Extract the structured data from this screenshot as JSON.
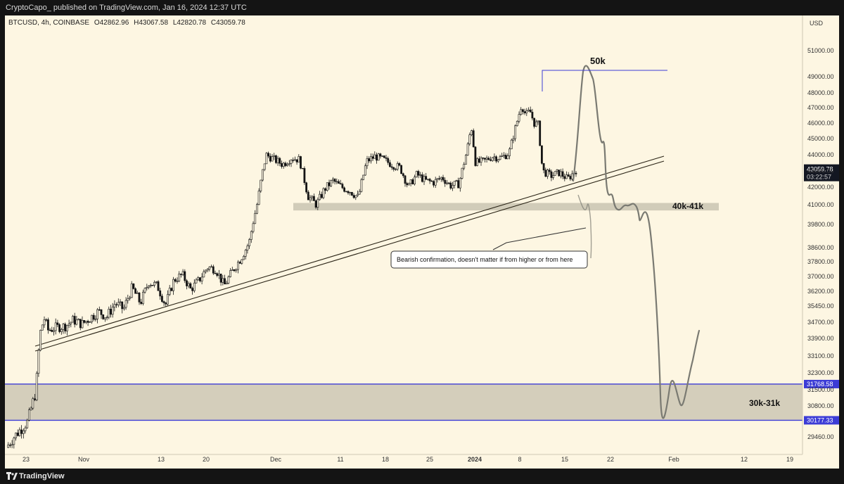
{
  "header": {
    "publisher_line": "CryptoCapo_ published on TradingView.com, Jan 16, 2024 12:37 UTC"
  },
  "footer": {
    "brand": "TradingView",
    "brand_icon": "tradingview-logo-icon"
  },
  "chart_data": {
    "type": "candlestick",
    "symbol_line": "BTCUSD, 4h, COINBASE",
    "ohlc": {
      "open": "O42862.96",
      "high": "H43067.58",
      "low": "L42820.78",
      "close": "C43059.78"
    },
    "currency": "USD",
    "price_ticks": [
      "51000.00",
      "49000.00",
      "48000.00",
      "47000.00",
      "46000.00",
      "45000.00",
      "44000.00",
      "43000.00",
      "42000.00",
      "41000.00",
      "39800.00",
      "38600.00",
      "37800.00",
      "37000.00",
      "36200.00",
      "35450.00",
      "34700.00",
      "33900.00",
      "33100.00",
      "32300.00",
      "31500.00",
      "30800.00",
      "29460.00"
    ],
    "price_ticks_num": [
      51000,
      49000,
      48000,
      47000,
      46000,
      45000,
      44000,
      43000,
      42000,
      41000,
      39800,
      38600,
      37800,
      37000,
      36200,
      35450,
      34700,
      33900,
      33100,
      32300,
      31500,
      30800,
      29460
    ],
    "time_ticks": [
      "23",
      "Nov",
      "13",
      "20",
      "Dec",
      "11",
      "18",
      "25",
      "2024",
      "8",
      "15",
      "22",
      "Feb",
      "12",
      "19"
    ],
    "current_price": {
      "label": "43059.78",
      "countdown": "03:22:57",
      "color": "#131722"
    },
    "markers": [
      {
        "label": "31768.58",
        "value": 31768.58,
        "color": "#3c3cd6"
      },
      {
        "label": "30177.33",
        "value": 30177.33,
        "color": "#3c3cd6"
      }
    ],
    "price_path": [
      [
        0,
        29000
      ],
      [
        2,
        29500
      ],
      [
        5,
        30100
      ],
      [
        7,
        31400
      ],
      [
        8,
        34100
      ],
      [
        9,
        34900
      ],
      [
        10,
        34300
      ],
      [
        12,
        34450
      ],
      [
        14,
        34500
      ],
      [
        16,
        34800
      ],
      [
        18,
        34600
      ],
      [
        20,
        34900
      ],
      [
        22,
        35200
      ],
      [
        24,
        34950
      ],
      [
        26,
        35600
      ],
      [
        28,
        35300
      ],
      [
        30,
        36400
      ],
      [
        32,
        35600
      ],
      [
        34,
        36700
      ],
      [
        36,
        36500
      ],
      [
        38,
        35500
      ],
      [
        40,
        36800
      ],
      [
        42,
        37100
      ],
      [
        44,
        36300
      ],
      [
        46,
        36800
      ],
      [
        48,
        37500
      ],
      [
        50,
        37400
      ],
      [
        52,
        36500
      ],
      [
        54,
        37300
      ],
      [
        56,
        38000
      ],
      [
        58,
        38900
      ],
      [
        60,
        41200
      ],
      [
        61,
        42700
      ],
      [
        62,
        44000
      ],
      [
        64,
        43700
      ],
      [
        66,
        43400
      ],
      [
        68,
        43800
      ],
      [
        70,
        43700
      ],
      [
        72,
        41500
      ],
      [
        74,
        41000
      ],
      [
        76,
        41900
      ],
      [
        78,
        42400
      ],
      [
        80,
        42000
      ],
      [
        82,
        41800
      ],
      [
        84,
        41400
      ],
      [
        86,
        43600
      ],
      [
        88,
        43900
      ],
      [
        90,
        43700
      ],
      [
        92,
        43400
      ],
      [
        94,
        43200
      ],
      [
        96,
        42000
      ],
      [
        98,
        42800
      ],
      [
        100,
        42400
      ],
      [
        102,
        42300
      ],
      [
        104,
        42600
      ],
      [
        106,
        42100
      ],
      [
        108,
        42200
      ],
      [
        110,
        44300
      ],
      [
        111,
        45800
      ],
      [
        112,
        43500
      ],
      [
        114,
        43600
      ],
      [
        116,
        43900
      ],
      [
        118,
        43800
      ],
      [
        120,
        44100
      ],
      [
        122,
        46200
      ],
      [
        123,
        47200
      ],
      [
        124,
        46500
      ],
      [
        125,
        46800
      ],
      [
        126,
        46000
      ],
      [
        127,
        45900
      ],
      [
        128,
        43000
      ],
      [
        130,
        42700
      ],
      [
        132,
        42900
      ],
      [
        134,
        42500
      ],
      [
        136,
        43060
      ]
    ],
    "annotations": [
      {
        "name": "target-50k",
        "text": "50k"
      },
      {
        "name": "zone-40k-41k",
        "text": "40k-41k",
        "low": 40650,
        "high": 41100
      },
      {
        "name": "zone-30k-31k",
        "text": "30k-31k",
        "low": 30177.33,
        "high": 31768.58
      },
      {
        "name": "bearish-note",
        "text": "Bearish confirmation, doesn't matter if from higher or from here"
      }
    ],
    "colors": {
      "background": "#fdf6e2",
      "candle": "#141414",
      "zone": "#c9c4b2",
      "line": "#3c3cd6",
      "projection": "#7a7a72",
      "trendline": "#2a2416"
    }
  }
}
